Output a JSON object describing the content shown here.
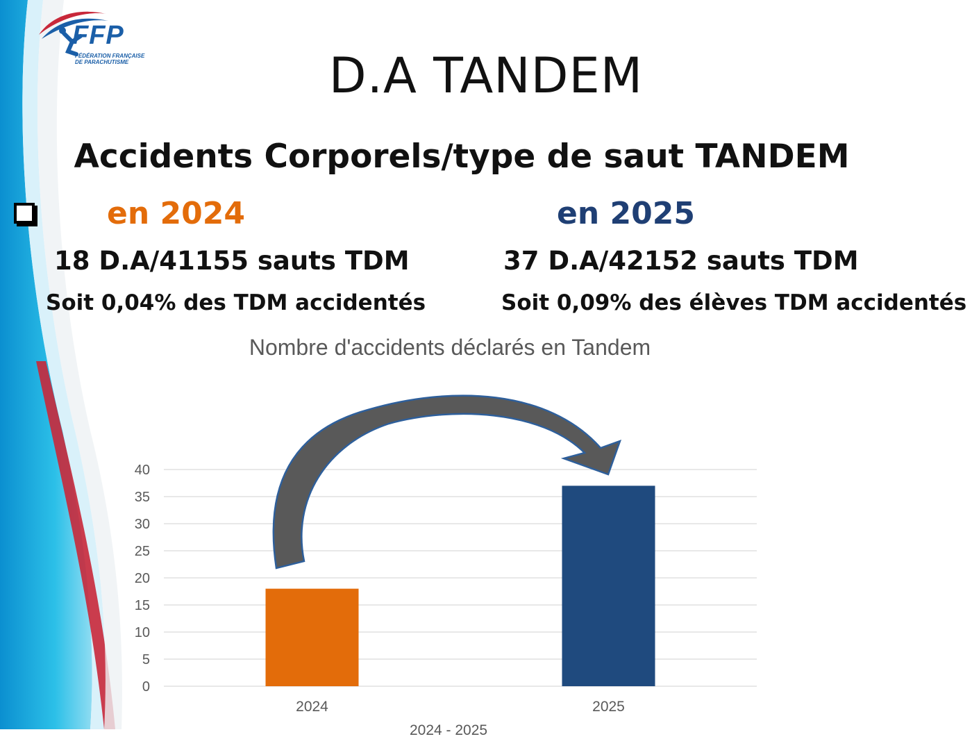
{
  "logo": {
    "text": "FFP",
    "subtitle": "FÉDÉRATION FRANÇAISE DE PARACHUTISME"
  },
  "slide": {
    "title": "D.A TANDEM",
    "subtitle": "Accidents Corporels/type de saut TANDEM",
    "year_2024_label": "en 2024",
    "year_2025_label": "en 2025",
    "stat_2024": "18 D.A/41155 sauts TDM",
    "stat_2025": "37 D.A/42152 sauts TDM",
    "pct_2024": "Soit 0,04% des TDM accidentés",
    "pct_2025": "Soit 0,09% des élèves TDM accidentés",
    "bottom_cutoff": "2024 - 2025"
  },
  "colors": {
    "orange": "#e36c0a",
    "navy": "#1f4a7e",
    "arrow": "#595959",
    "arrow_outline": "#2e5f9b"
  },
  "chart_data": {
    "type": "bar",
    "title": "Nombre d'accidents déclarés en Tandem",
    "categories": [
      "2024",
      "2025"
    ],
    "values": [
      18,
      37
    ],
    "bar_colors": [
      "#e36c0a",
      "#1f4a7e"
    ],
    "ylim": [
      0,
      40
    ],
    "yticks": [
      0,
      5,
      10,
      15,
      20,
      25,
      30,
      35,
      40
    ],
    "grid": true,
    "annotation": "curved arrow from 2024 bar to 2025 bar"
  }
}
